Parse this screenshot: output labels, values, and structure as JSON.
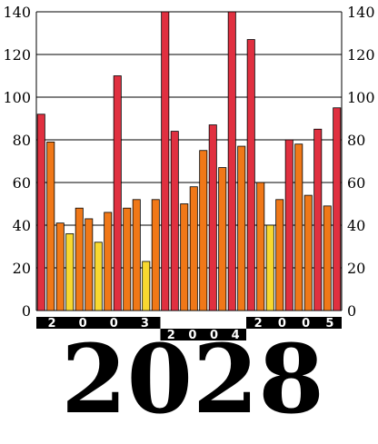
{
  "chart_data": {
    "type": "bar",
    "ylim": [
      0,
      140
    ],
    "yticks": [
      0,
      20,
      40,
      60,
      80,
      100,
      120,
      140
    ],
    "grid": true,
    "values": [
      92,
      79,
      41,
      36,
      48,
      43,
      32,
      46,
      110,
      48,
      52,
      23,
      52,
      140,
      84,
      50,
      58,
      75,
      87,
      67,
      140,
      77,
      127,
      60,
      40,
      52,
      80,
      78,
      54,
      85,
      49,
      95
    ],
    "groups": [
      {
        "label": "2003",
        "count": 13
      },
      {
        "label": "2004",
        "count": 9
      },
      {
        "label": "2005",
        "count": 10
      }
    ],
    "color_scale": {
      "high": "#e03040",
      "mid": "#f07818",
      "low": "#f8d830"
    },
    "footer_label": "2028"
  }
}
